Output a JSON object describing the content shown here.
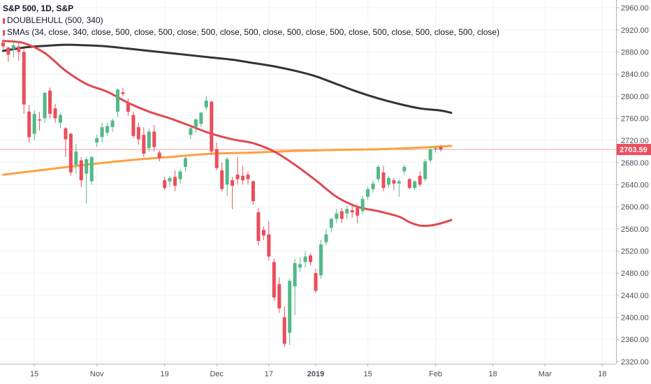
{
  "legend": {
    "title": "S&P 500, 1D, S&P",
    "line2": "DOUBLEHULL (500, 340)",
    "line3": "SMAs (34, close, 340, close, 500, close, 500, close, 500, close, 500, close, 500, close, 500, close, 500, close, 500, close, 500, close)"
  },
  "colors": {
    "up": "#53b987",
    "down": "#eb4d5c",
    "ma34": "#e0494f",
    "ma340": "#333333",
    "ma500": "#ffa040",
    "price_line": "#f0a2a8",
    "price_tag": "#eb4d5c",
    "grid": "#f0f3fa",
    "axis_border": "#b2b5be"
  },
  "chart_data": {
    "type": "candlestick",
    "title": "S&P 500, 1D, S&P",
    "ylim": [
      2316,
      2974
    ],
    "y_ticks": [
      2320,
      2360,
      2400,
      2440,
      2480,
      2520,
      2560,
      2600,
      2640,
      2680,
      2720,
      2760,
      2800,
      2840,
      2880,
      2920,
      2960
    ],
    "x_ticks": [
      {
        "label": "15",
        "index": 6
      },
      {
        "label": "Nov",
        "index": 18
      },
      {
        "label": "19",
        "index": 31
      },
      {
        "label": "Dec",
        "index": 41
      },
      {
        "label": "17",
        "index": 51
      },
      {
        "label": "2019",
        "index": 60
      },
      {
        "label": "15",
        "index": 70
      },
      {
        "label": "Feb",
        "index": 83
      },
      {
        "label": "18",
        "index": 94
      },
      {
        "label": "Mar",
        "index": 104
      },
      {
        "label": "18",
        "index": 115
      }
    ],
    "last_price": 2703.59,
    "grid": true,
    "candles": [
      {
        "o": 2897,
        "h": 2903,
        "l": 2885,
        "c": 2890
      },
      {
        "o": 2888,
        "h": 2890,
        "l": 2862,
        "c": 2875
      },
      {
        "o": 2885,
        "h": 2900,
        "l": 2870,
        "c": 2892
      },
      {
        "o": 2890,
        "h": 2896,
        "l": 2864,
        "c": 2880
      },
      {
        "o": 2880,
        "h": 2887,
        "l": 2768,
        "c": 2785
      },
      {
        "o": 2772,
        "h": 2784,
        "l": 2716,
        "c": 2726
      },
      {
        "o": 2732,
        "h": 2775,
        "l": 2720,
        "c": 2768
      },
      {
        "o": 2758,
        "h": 2772,
        "l": 2738,
        "c": 2756
      },
      {
        "o": 2760,
        "h": 2808,
        "l": 2752,
        "c": 2806
      },
      {
        "o": 2810,
        "h": 2816,
        "l": 2760,
        "c": 2768
      },
      {
        "o": 2778,
        "h": 2786,
        "l": 2752,
        "c": 2760
      },
      {
        "o": 2752,
        "h": 2770,
        "l": 2742,
        "c": 2766
      },
      {
        "o": 2742,
        "h": 2744,
        "l": 2690,
        "c": 2722
      },
      {
        "o": 2732,
        "h": 2734,
        "l": 2656,
        "c": 2662
      },
      {
        "o": 2676,
        "h": 2714,
        "l": 2660,
        "c": 2700
      },
      {
        "o": 2684,
        "h": 2690,
        "l": 2636,
        "c": 2648
      },
      {
        "o": 2660,
        "h": 2690,
        "l": 2606,
        "c": 2686
      },
      {
        "o": 2646,
        "h": 2692,
        "l": 2640,
        "c": 2690
      },
      {
        "o": 2716,
        "h": 2730,
        "l": 2708,
        "c": 2724
      },
      {
        "o": 2726,
        "h": 2752,
        "l": 2716,
        "c": 2744
      },
      {
        "o": 2734,
        "h": 2752,
        "l": 2728,
        "c": 2746
      },
      {
        "o": 2744,
        "h": 2760,
        "l": 2736,
        "c": 2756
      },
      {
        "o": 2772,
        "h": 2814,
        "l": 2762,
        "c": 2812
      },
      {
        "o": 2807,
        "h": 2815,
        "l": 2800,
        "c": 2804
      },
      {
        "o": 2788,
        "h": 2796,
        "l": 2764,
        "c": 2772
      },
      {
        "o": 2766,
        "h": 2772,
        "l": 2724,
        "c": 2728
      },
      {
        "o": 2744,
        "h": 2752,
        "l": 2712,
        "c": 2722
      },
      {
        "o": 2730,
        "h": 2744,
        "l": 2690,
        "c": 2696
      },
      {
        "o": 2706,
        "h": 2742,
        "l": 2700,
        "c": 2736
      },
      {
        "o": 2736,
        "h": 2748,
        "l": 2700,
        "c": 2708
      },
      {
        "o": 2698,
        "h": 2702,
        "l": 2682,
        "c": 2688
      },
      {
        "o": 2648,
        "h": 2654,
        "l": 2630,
        "c": 2634
      },
      {
        "o": 2646,
        "h": 2656,
        "l": 2636,
        "c": 2652
      },
      {
        "o": 2654,
        "h": 2666,
        "l": 2628,
        "c": 2638
      },
      {
        "o": 2650,
        "h": 2668,
        "l": 2642,
        "c": 2664
      },
      {
        "o": 2672,
        "h": 2690,
        "l": 2664,
        "c": 2688
      },
      {
        "o": 2730,
        "h": 2744,
        "l": 2722,
        "c": 2742
      },
      {
        "o": 2744,
        "h": 2760,
        "l": 2734,
        "c": 2758
      },
      {
        "o": 2750,
        "h": 2772,
        "l": 2744,
        "c": 2770
      },
      {
        "o": 2780,
        "h": 2800,
        "l": 2774,
        "c": 2792
      },
      {
        "o": 2790,
        "h": 2792,
        "l": 2694,
        "c": 2700
      },
      {
        "o": 2704,
        "h": 2716,
        "l": 2666,
        "c": 2670
      },
      {
        "o": 2666,
        "h": 2680,
        "l": 2628,
        "c": 2632
      },
      {
        "o": 2640,
        "h": 2690,
        "l": 2620,
        "c": 2686
      },
      {
        "o": 2648,
        "h": 2654,
        "l": 2596,
        "c": 2638
      },
      {
        "o": 2658,
        "h": 2690,
        "l": 2640,
        "c": 2650
      },
      {
        "o": 2656,
        "h": 2674,
        "l": 2640,
        "c": 2648
      },
      {
        "o": 2658,
        "h": 2664,
        "l": 2640,
        "c": 2650
      },
      {
        "o": 2646,
        "h": 2648,
        "l": 2604,
        "c": 2610
      },
      {
        "o": 2590,
        "h": 2598,
        "l": 2530,
        "c": 2538
      },
      {
        "o": 2558,
        "h": 2564,
        "l": 2540,
        "c": 2548
      },
      {
        "o": 2550,
        "h": 2574,
        "l": 2502,
        "c": 2510
      },
      {
        "o": 2500,
        "h": 2506,
        "l": 2430,
        "c": 2436
      },
      {
        "o": 2460,
        "h": 2472,
        "l": 2408,
        "c": 2416
      },
      {
        "o": 2400,
        "h": 2420,
        "l": 2346,
        "c": 2352
      },
      {
        "o": 2372,
        "h": 2470,
        "l": 2350,
        "c": 2466
      },
      {
        "o": 2456,
        "h": 2506,
        "l": 2404,
        "c": 2498
      },
      {
        "o": 2490,
        "h": 2508,
        "l": 2482,
        "c": 2496
      },
      {
        "o": 2500,
        "h": 2520,
        "l": 2490,
        "c": 2510
      },
      {
        "o": 2512,
        "h": 2516,
        "l": 2494,
        "c": 2500
      },
      {
        "o": 2480,
        "h": 2488,
        "l": 2444,
        "c": 2448
      },
      {
        "o": 2476,
        "h": 2540,
        "l": 2470,
        "c": 2532
      },
      {
        "o": 2536,
        "h": 2560,
        "l": 2530,
        "c": 2550
      },
      {
        "o": 2562,
        "h": 2580,
        "l": 2554,
        "c": 2578
      },
      {
        "o": 2578,
        "h": 2596,
        "l": 2570,
        "c": 2588
      },
      {
        "o": 2592,
        "h": 2598,
        "l": 2570,
        "c": 2578
      },
      {
        "o": 2588,
        "h": 2602,
        "l": 2578,
        "c": 2596
      },
      {
        "o": 2594,
        "h": 2604,
        "l": 2580,
        "c": 2590
      },
      {
        "o": 2598,
        "h": 2602,
        "l": 2570,
        "c": 2584
      },
      {
        "o": 2592,
        "h": 2620,
        "l": 2586,
        "c": 2614
      },
      {
        "o": 2618,
        "h": 2636,
        "l": 2612,
        "c": 2632
      },
      {
        "o": 2632,
        "h": 2648,
        "l": 2626,
        "c": 2642
      },
      {
        "o": 2650,
        "h": 2676,
        "l": 2644,
        "c": 2672
      },
      {
        "o": 2662,
        "h": 2674,
        "l": 2628,
        "c": 2634
      },
      {
        "o": 2640,
        "h": 2656,
        "l": 2634,
        "c": 2652
      },
      {
        "o": 2648,
        "h": 2652,
        "l": 2630,
        "c": 2642
      },
      {
        "o": 2642,
        "h": 2650,
        "l": 2618,
        "c": 2646
      },
      {
        "o": 2664,
        "h": 2676,
        "l": 2658,
        "c": 2672
      },
      {
        "o": 2650,
        "h": 2652,
        "l": 2632,
        "c": 2634
      },
      {
        "o": 2634,
        "h": 2648,
        "l": 2630,
        "c": 2646
      },
      {
        "o": 2656,
        "h": 2664,
        "l": 2636,
        "c": 2640
      },
      {
        "o": 2650,
        "h": 2686,
        "l": 2646,
        "c": 2682
      },
      {
        "o": 2684,
        "h": 2708,
        "l": 2680,
        "c": 2704
      },
      {
        "o": 2704,
        "h": 2710,
        "l": 2698,
        "c": 2706
      },
      {
        "o": 2708,
        "h": 2712,
        "l": 2700,
        "c": 2703.59
      }
    ],
    "series": [
      {
        "name": "SMA 34",
        "color": "#e0494f",
        "points": [
          [
            0,
            2900
          ],
          [
            4,
            2896
          ],
          [
            8,
            2878
          ],
          [
            12,
            2846
          ],
          [
            16,
            2822
          ],
          [
            20,
            2808
          ],
          [
            24,
            2788
          ],
          [
            28,
            2772
          ],
          [
            32,
            2760
          ],
          [
            36,
            2746
          ],
          [
            40,
            2732
          ],
          [
            44,
            2722
          ],
          [
            48,
            2715
          ],
          [
            52,
            2700
          ],
          [
            56,
            2676
          ],
          [
            60,
            2648
          ],
          [
            64,
            2618
          ],
          [
            68,
            2600
          ],
          [
            72,
            2592
          ],
          [
            76,
            2582
          ],
          [
            78,
            2572
          ],
          [
            80,
            2566
          ],
          [
            82,
            2566
          ],
          [
            84,
            2570
          ],
          [
            86,
            2576
          ]
        ]
      },
      {
        "name": "SMA 340",
        "color": "#333333",
        "points": [
          [
            0,
            2882
          ],
          [
            4,
            2888
          ],
          [
            8,
            2891
          ],
          [
            12,
            2893
          ],
          [
            16,
            2892
          ],
          [
            20,
            2890
          ],
          [
            24,
            2886
          ],
          [
            28,
            2882
          ],
          [
            32,
            2878
          ],
          [
            36,
            2874
          ],
          [
            40,
            2870
          ],
          [
            44,
            2866
          ],
          [
            48,
            2860
          ],
          [
            52,
            2854
          ],
          [
            56,
            2846
          ],
          [
            60,
            2836
          ],
          [
            64,
            2822
          ],
          [
            68,
            2808
          ],
          [
            72,
            2796
          ],
          [
            76,
            2786
          ],
          [
            80,
            2778
          ],
          [
            84,
            2774
          ],
          [
            86,
            2770
          ]
        ]
      },
      {
        "name": "SMA 500",
        "color": "#ffa040",
        "points": [
          [
            0,
            2658
          ],
          [
            8,
            2667
          ],
          [
            16,
            2676
          ],
          [
            24,
            2684
          ],
          [
            32,
            2690
          ],
          [
            40,
            2696
          ],
          [
            48,
            2698
          ],
          [
            56,
            2701
          ],
          [
            64,
            2703
          ],
          [
            72,
            2704
          ],
          [
            80,
            2707
          ],
          [
            86,
            2710
          ]
        ]
      }
    ]
  }
}
